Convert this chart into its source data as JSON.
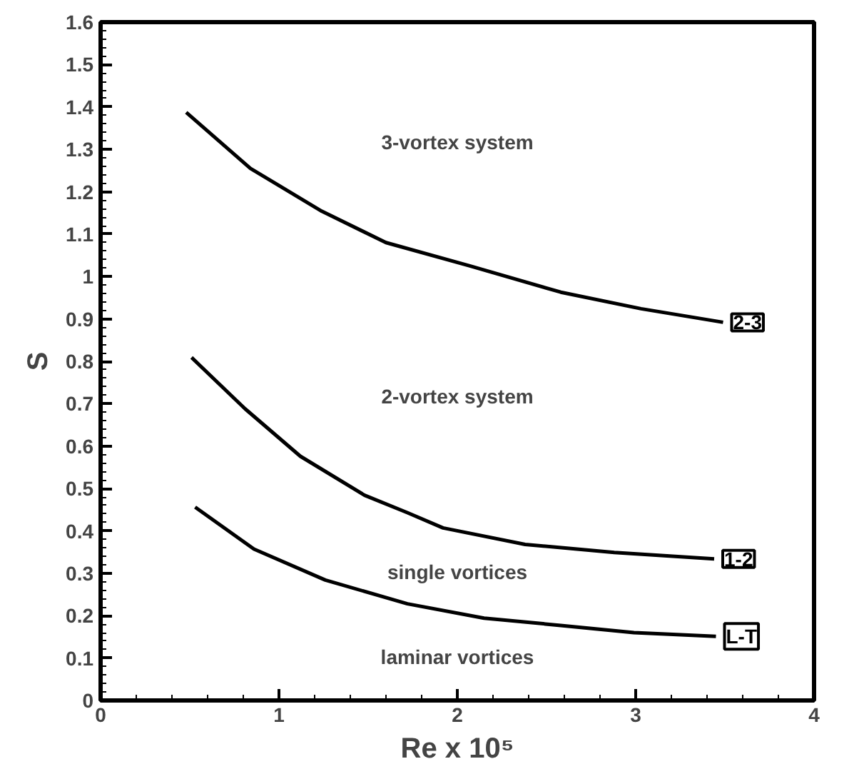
{
  "chart_data": {
    "type": "line",
    "xlabel": "Re x 10⁵",
    "ylabel": "S",
    "xlim": [
      0,
      4
    ],
    "xticks": [
      0,
      1,
      2,
      3,
      4
    ],
    "ylim": [
      0,
      1.6
    ],
    "yticks": [
      0,
      0.1,
      0.2,
      0.3,
      0.4,
      0.5,
      0.6,
      0.7,
      0.8,
      0.9,
      1,
      1.1,
      1.2,
      1.3,
      1.4,
      1.5,
      1.6
    ],
    "grid": false,
    "marker": "none",
    "line_style": "solid",
    "series": [
      {
        "name": "2-3",
        "color": "#000000",
        "x": [
          0.48,
          0.84,
          1.24,
          1.6,
          2.07,
          2.58,
          3.03,
          3.49
        ],
        "values": [
          1.387,
          1.255,
          1.154,
          1.08,
          1.025,
          0.963,
          0.924,
          0.892
        ]
      },
      {
        "name": "1-2",
        "color": "#000000",
        "x": [
          0.51,
          0.81,
          1.12,
          1.48,
          1.72,
          1.92,
          2.38,
          2.88,
          3.44
        ],
        "values": [
          0.809,
          0.688,
          0.576,
          0.484,
          0.443,
          0.407,
          0.368,
          0.349,
          0.334
        ]
      },
      {
        "name": "L-T",
        "color": "#000000",
        "x": [
          0.53,
          0.86,
          1.26,
          1.72,
          2.15,
          2.58,
          2.99,
          3.45
        ],
        "values": [
          0.456,
          0.357,
          0.284,
          0.228,
          0.194,
          0.177,
          0.16,
          0.151
        ]
      }
    ],
    "annotations": [
      "3-vortex system",
      "2-vortex system",
      "single vortices",
      "laminar vortices"
    ]
  }
}
